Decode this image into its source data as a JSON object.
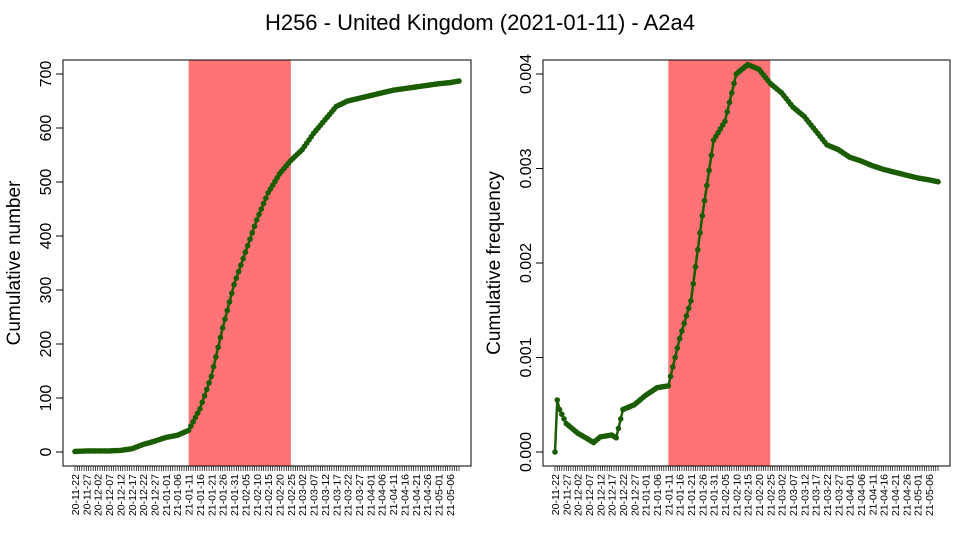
{
  "title": "H256 - United Kingdom (2021-01-11) - A2a4",
  "colors": {
    "line": "#1a5c00",
    "highlight": "#ff7377",
    "axis": "#000000"
  },
  "chart_data": [
    {
      "type": "line",
      "ylabel": "Cumulative number",
      "xlabel": "",
      "ylim": [
        0,
        700
      ],
      "yticks": [
        "0",
        "100",
        "200",
        "300",
        "400",
        "500",
        "600",
        "700"
      ],
      "x_tick_labels": [
        "20-11-22",
        "20-11-27",
        "20-12-02",
        "20-12-07",
        "20-12-12",
        "20-12-17",
        "20-12-22",
        "20-12-27",
        "21-01-01",
        "21-01-06",
        "21-01-11",
        "21-01-16",
        "21-01-21",
        "21-01-26",
        "21-01-31",
        "21-02-05",
        "21-02-10",
        "21-02-15",
        "21-02-20",
        "21-02-25",
        "21-03-02",
        "21-03-07",
        "21-03-12",
        "21-03-17",
        "21-03-22",
        "21-03-27",
        "21-04-01",
        "21-04-06",
        "21-04-11",
        "21-04-16",
        "21-04-21",
        "21-04-26",
        "21-05-01",
        "21-05-06"
      ],
      "highlight_range": [
        "21-01-11",
        "21-02-25"
      ],
      "x_start": "20-11-22",
      "x_end": "21-05-10",
      "grid": false,
      "series": [
        {
          "x": [
            "20-11-22",
            "20-11-27",
            "20-12-02",
            "20-12-07",
            "20-12-12",
            "20-12-17",
            "20-12-22",
            "20-12-27",
            "21-01-01",
            "21-01-06",
            "21-01-11",
            "21-01-16",
            "21-01-21",
            "21-01-26",
            "21-01-31",
            "21-02-05",
            "21-02-10",
            "21-02-15",
            "21-02-20",
            "21-02-25",
            "21-03-02",
            "21-03-07",
            "21-03-12",
            "21-03-17",
            "21-03-22",
            "21-03-27",
            "21-04-01",
            "21-04-06",
            "21-04-11",
            "21-04-16",
            "21-04-21",
            "21-04-26",
            "21-05-01",
            "21-05-06",
            "21-05-10"
          ],
          "y": [
            1,
            2,
            2,
            2,
            3,
            6,
            14,
            20,
            27,
            31,
            40,
            80,
            140,
            230,
            310,
            370,
            430,
            480,
            515,
            540,
            560,
            590,
            615,
            640,
            650,
            655,
            660,
            665,
            670,
            673,
            676,
            679,
            682,
            684,
            687
          ]
        }
      ]
    },
    {
      "type": "line",
      "ylabel": "Cumulative frequency",
      "xlabel": "",
      "ylim": [
        0,
        0.004
      ],
      "yticks": [
        "0.000",
        "0.001",
        "0.002",
        "0.003",
        "0.004"
      ],
      "x_tick_labels": [
        "20-11-22",
        "20-11-27",
        "20-12-02",
        "20-12-07",
        "20-12-12",
        "20-12-17",
        "20-12-22",
        "20-12-27",
        "21-01-01",
        "21-01-06",
        "21-01-11",
        "21-01-16",
        "21-01-21",
        "21-01-26",
        "21-01-31",
        "21-02-05",
        "21-02-10",
        "21-02-15",
        "21-02-20",
        "21-02-25",
        "21-03-02",
        "21-03-07",
        "21-03-12",
        "21-03-17",
        "21-03-22",
        "21-03-27",
        "21-04-01",
        "21-04-06",
        "21-04-11",
        "21-04-16",
        "21-04-21",
        "21-04-26",
        "21-05-01",
        "21-05-06"
      ],
      "highlight_range": [
        "21-01-11",
        "21-02-25"
      ],
      "x_start": "20-11-22",
      "x_end": "21-05-10",
      "grid": false,
      "series": [
        {
          "x": [
            "20-11-22",
            "20-11-23",
            "20-11-24",
            "20-11-27",
            "20-12-02",
            "20-12-07",
            "20-12-09",
            "20-12-12",
            "20-12-17",
            "20-12-19",
            "20-12-22",
            "20-12-27",
            "21-01-01",
            "21-01-06",
            "21-01-11",
            "21-01-16",
            "21-01-21",
            "21-01-26",
            "21-01-31",
            "21-02-05",
            "21-02-10",
            "21-02-15",
            "21-02-20",
            "21-02-25",
            "21-03-02",
            "21-03-07",
            "21-03-12",
            "21-03-17",
            "21-03-22",
            "21-03-27",
            "21-04-01",
            "21-04-06",
            "21-04-11",
            "21-04-16",
            "21-04-21",
            "21-04-26",
            "21-05-01",
            "21-05-06",
            "21-05-10"
          ],
          "y": [
            0.0,
            0.00055,
            0.00045,
            0.0003,
            0.0002,
            0.00013,
            0.0001,
            0.00016,
            0.00018,
            0.00015,
            0.00045,
            0.0005,
            0.0006,
            0.00068,
            0.0007,
            0.0012,
            0.0016,
            0.0025,
            0.0033,
            0.0035,
            0.004,
            0.0041,
            0.00405,
            0.0039,
            0.0038,
            0.00365,
            0.00355,
            0.0034,
            0.00325,
            0.0032,
            0.00312,
            0.00308,
            0.00303,
            0.00299,
            0.00296,
            0.00293,
            0.0029,
            0.00288,
            0.00286
          ]
        }
      ]
    }
  ]
}
